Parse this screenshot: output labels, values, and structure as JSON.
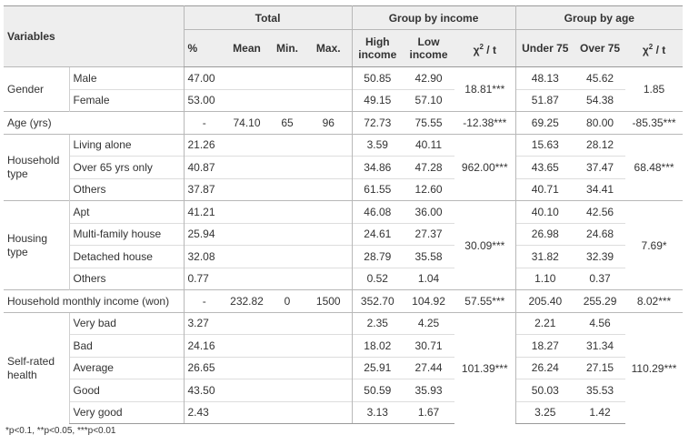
{
  "header": {
    "variables": "Variables",
    "total": "Total",
    "group_income": "Group by income",
    "group_age": "Group by age",
    "pct": "%",
    "mean": "Mean",
    "min": "Min.",
    "max": "Max.",
    "high_income": "High income",
    "low_income": "Low income",
    "chi_t_income": "χ",
    "chi_t_income_sup": "2",
    "chi_t_income_tail": " / t",
    "under75": "Under 75",
    "over75": "Over 75",
    "chi_t_age": "χ",
    "chi_t_age_sup": "2",
    "chi_t_age_tail": " / t"
  },
  "rows": {
    "gender": {
      "label": "Gender",
      "chi_income": "18.81***",
      "chi_age": "1.85",
      "male": {
        "label": "Male",
        "pct": "47.00",
        "high": "50.85",
        "low": "42.90",
        "u75": "48.13",
        "o75": "45.62"
      },
      "female": {
        "label": "Female",
        "pct": "53.00",
        "high": "49.15",
        "low": "57.10",
        "u75": "51.87",
        "o75": "54.38"
      }
    },
    "age": {
      "label": "Age (yrs)",
      "pct": "-",
      "mean": "74.10",
      "min": "65",
      "max": "96",
      "high": "72.73",
      "low": "75.55",
      "chi_income": "-12.38***",
      "u75": "69.25",
      "o75": "80.00",
      "chi_age": "-85.35***"
    },
    "household_type": {
      "label": "Household type",
      "chi_income": "962.00***",
      "chi_age": "68.48***",
      "living_alone": {
        "label": "Living alone",
        "pct": "21.26",
        "high": "3.59",
        "low": "40.11",
        "u75": "15.63",
        "o75": "28.12"
      },
      "over65": {
        "label": "Over 65 yrs only",
        "pct": "40.87",
        "high": "34.86",
        "low": "47.28",
        "u75": "43.65",
        "o75": "37.47"
      },
      "others": {
        "label": "Others",
        "pct": "37.87",
        "high": "61.55",
        "low": "12.60",
        "u75": "40.71",
        "o75": "34.41"
      }
    },
    "housing_type": {
      "label": "Housing type",
      "chi_income": "30.09***",
      "chi_age": "7.69*",
      "apt": {
        "label": "Apt",
        "pct": "41.21",
        "high": "46.08",
        "low": "36.00",
        "u75": "40.10",
        "o75": "42.56"
      },
      "multi": {
        "label": "Multi-family house",
        "pct": "25.94",
        "high": "24.61",
        "low": "27.37",
        "u75": "26.98",
        "o75": "24.68"
      },
      "detached": {
        "label": "Detached house",
        "pct": "32.08",
        "high": "28.79",
        "low": "35.58",
        "u75": "31.82",
        "o75": "32.39"
      },
      "others": {
        "label": "Others",
        "pct": "0.77",
        "high": "0.52",
        "low": "1.04",
        "u75": "1.10",
        "o75": "0.37"
      }
    },
    "income": {
      "label": "Household monthly income (won)",
      "pct": "-",
      "mean": "232.82",
      "min": "0",
      "max": "1500",
      "high": "352.70",
      "low": "104.92",
      "chi_income": "57.55***",
      "u75": "205.40",
      "o75": "255.29",
      "chi_age": "8.02***"
    },
    "health": {
      "label": "Self-rated health",
      "chi_income": "101.39***",
      "chi_age": "110.29***",
      "very_bad": {
        "label": "Very bad",
        "pct": "3.27",
        "high": "2.35",
        "low": "4.25",
        "u75": "2.21",
        "o75": "4.56"
      },
      "bad": {
        "label": "Bad",
        "pct": "24.16",
        "high": "18.02",
        "low": "30.71",
        "u75": "18.27",
        "o75": "31.34"
      },
      "average": {
        "label": "Average",
        "pct": "26.65",
        "high": "25.91",
        "low": "27.44",
        "u75": "26.24",
        "o75": "27.15"
      },
      "good": {
        "label": "Good",
        "pct": "43.50",
        "high": "50.59",
        "low": "35.93",
        "u75": "50.03",
        "o75": "35.53"
      },
      "very_good": {
        "label": "Very good",
        "pct": "2.43",
        "high": "3.13",
        "low": "1.67",
        "u75": "3.25",
        "o75": "1.42"
      }
    }
  },
  "footnote": "*p<0.1, **p<0.05, ***p<0.01"
}
